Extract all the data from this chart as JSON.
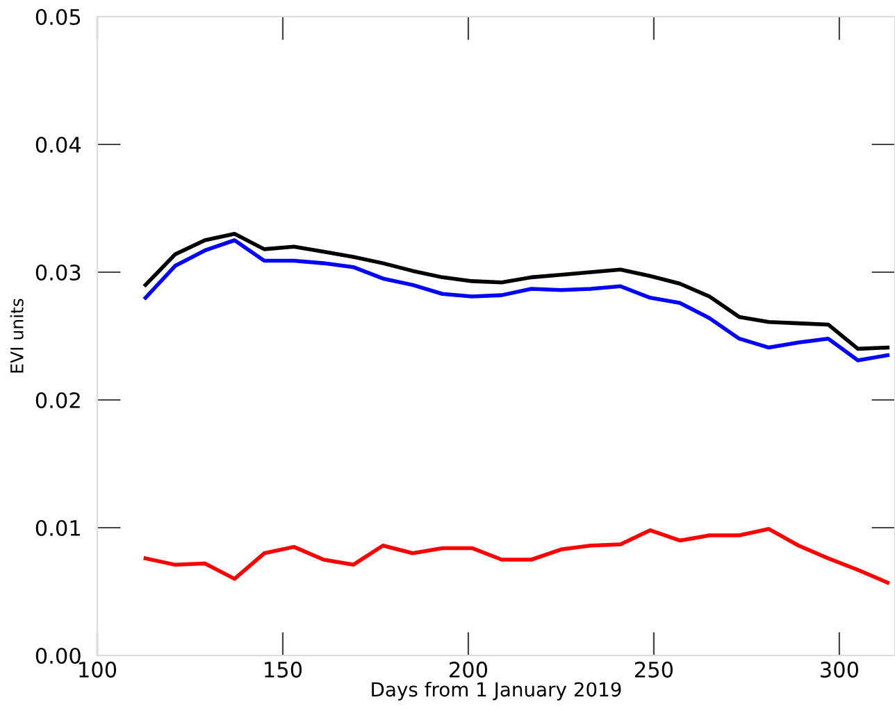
{
  "chart_data": {
    "type": "line",
    "xlabel": "Days from 1 January 2019",
    "ylabel": "EVI units",
    "x": [
      113,
      121,
      129,
      137,
      145,
      153,
      161,
      169,
      177,
      185,
      193,
      201,
      209,
      217,
      225,
      233,
      241,
      249,
      257,
      265,
      273,
      281,
      289,
      297,
      305,
      313
    ],
    "series": [
      {
        "color": "#000000",
        "values": [
          0.029,
          0.0314,
          0.0325,
          0.033,
          0.0318,
          0.032,
          0.0316,
          0.0312,
          0.0307,
          0.0301,
          0.0296,
          0.0293,
          0.0292,
          0.0296,
          0.0298,
          0.03,
          0.0302,
          0.0297,
          0.0291,
          0.0281,
          0.0265,
          0.0261,
          0.026,
          0.0259,
          0.024,
          0.0241
        ]
      },
      {
        "color": "#0000ff",
        "values": [
          0.028,
          0.0305,
          0.0317,
          0.0325,
          0.0309,
          0.0309,
          0.0307,
          0.0304,
          0.0295,
          0.029,
          0.0283,
          0.0281,
          0.0282,
          0.0287,
          0.0286,
          0.0287,
          0.0289,
          0.028,
          0.0276,
          0.0264,
          0.0248,
          0.0241,
          0.0245,
          0.0248,
          0.0231,
          0.0235
        ]
      },
      {
        "color": "#ff0000",
        "values": [
          0.0076,
          0.0071,
          0.0072,
          0.006,
          0.008,
          0.0085,
          0.0075,
          0.0071,
          0.0086,
          0.008,
          0.0084,
          0.0084,
          0.0075,
          0.0075,
          0.0083,
          0.0086,
          0.0087,
          0.0098,
          0.009,
          0.0094,
          0.0094,
          0.0099,
          0.0086,
          0.0076,
          0.0067,
          0.0057
        ]
      }
    ],
    "xlim": [
      100,
      315
    ],
    "ylim": [
      0,
      0.05
    ],
    "xticks": [
      100,
      150,
      200,
      250,
      300
    ],
    "yticks": [
      {
        "value": 0,
        "label": "0.00"
      },
      {
        "value": 0.01,
        "label": "0.01"
      },
      {
        "value": 0.02,
        "label": "0.02"
      },
      {
        "value": 0.03,
        "label": "0.03"
      },
      {
        "value": 0.04,
        "label": "0.04"
      },
      {
        "value": 0.05,
        "label": "0.05"
      }
    ],
    "grid": false,
    "marker": "none",
    "line_style": "solid"
  }
}
